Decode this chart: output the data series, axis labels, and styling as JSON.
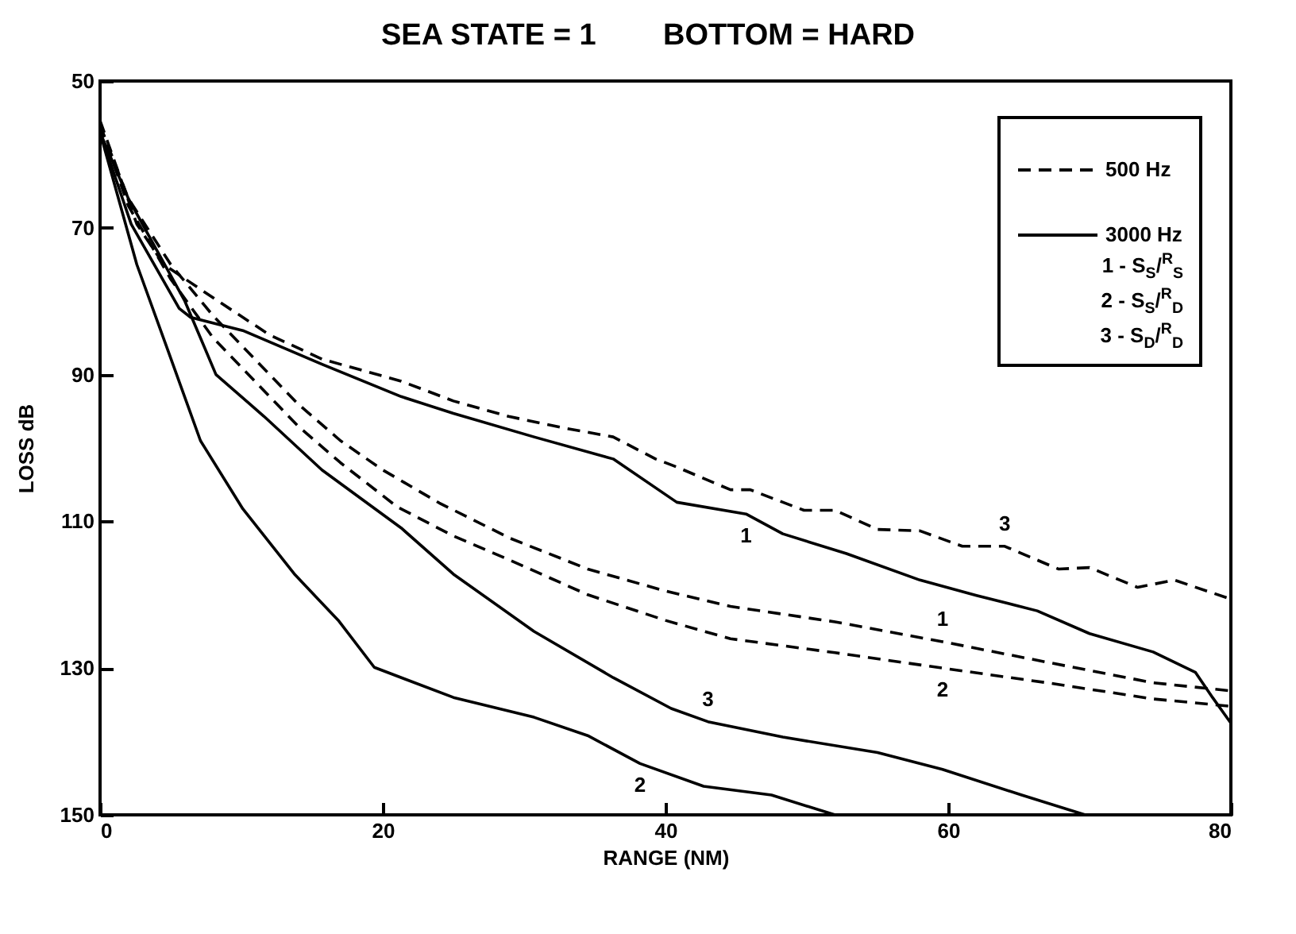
{
  "chart_data": {
    "type": "line",
    "title": "SEA STATE = 1        BOTTOM = HARD",
    "xlabel": "RANGE (NM)",
    "ylabel": "LOSS dB",
    "xlim": [
      0,
      80
    ],
    "xticks": [
      0,
      20,
      40,
      60,
      80
    ],
    "ylim": [
      150,
      50
    ],
    "yticks": [
      50,
      70,
      90,
      110,
      130,
      150
    ],
    "grid": false,
    "legend": "top right",
    "marker": "none",
    "series": [
      {
        "name": "500 Hz",
        "color": "#000000",
        "line_style": "dashed",
        "x": [
          0,
          2,
          5,
          8,
          11,
          14,
          17,
          20,
          24,
          29,
          34.5,
          40,
          44.6,
          52,
          59.6,
          67,
          74.5,
          80
        ],
        "values": [
          56,
          66,
          75,
          82,
          88,
          94,
          99,
          103,
          107.5,
          112.3,
          116.5,
          119.5,
          121.6,
          123.7,
          126.4,
          129.2,
          132,
          133.1
        ]
      },
      {
        "color": "#000000",
        "line_style": "dashed",
        "x": [
          0,
          2,
          5,
          8,
          11,
          14,
          17,
          21,
          25,
          29,
          34.5,
          40,
          44.6,
          52,
          59.6,
          67,
          74.5,
          80
        ],
        "values": [
          56,
          67,
          77,
          85,
          91,
          97,
          102,
          108,
          112,
          115.3,
          120,
          123.5,
          126,
          127.9,
          130,
          132,
          134.2,
          135.2
        ]
      },
      {
        "color": "#000000",
        "line_style": "dashed",
        "x": [
          0,
          2.6,
          4.5,
          8.2,
          12,
          15.7,
          21.3,
          25,
          28.9,
          32.6,
          36.3,
          39.3,
          40.8,
          44.6,
          46,
          49.8,
          52,
          55,
          58,
          61,
          64,
          67.8,
          70,
          73.4,
          76,
          80
        ],
        "values": [
          55.4,
          69.5,
          75,
          79.8,
          84.6,
          87.9,
          90.9,
          93.6,
          95.7,
          97.2,
          98.5,
          101.5,
          102.6,
          105.7,
          105.7,
          108.5,
          108.5,
          111.1,
          111.3,
          113.4,
          113.4,
          116.5,
          116.3,
          119,
          118,
          120.6
        ]
      },
      {
        "name": "3000 Hz",
        "color": "#000000",
        "line_style": "solid",
        "x": [
          0,
          2.2,
          5.6,
          6.4,
          10.1,
          15.7,
          21.3,
          25,
          30.7,
          36.3,
          40.8,
          45.7,
          48.3,
          52.8,
          58,
          62,
          66.3,
          70,
          74.5,
          77.5,
          78.7,
          80
        ],
        "values": [
          57,
          69.5,
          81,
          82.2,
          84,
          88.6,
          93,
          95.3,
          98.5,
          101.5,
          107.4,
          109,
          111.7,
          114.4,
          118,
          120.1,
          122.2,
          125.3,
          127.8,
          130.6,
          134,
          137.5
        ]
      },
      {
        "color": "#000000",
        "line_style": "solid",
        "x": [
          0,
          2.6,
          4.8,
          7.1,
          10.1,
          13.8,
          16.9,
          19.4,
          25,
          30.7,
          34.5,
          38.2,
          42.7,
          47.5,
          52
        ],
        "values": [
          57,
          75,
          86.7,
          99,
          108.3,
          117.3,
          123.6,
          129.9,
          134,
          136.7,
          139.2,
          143,
          146.1,
          147.3,
          150
        ]
      },
      {
        "color": "#000000",
        "line_style": "solid",
        "x": [
          0,
          2,
          4,
          6,
          8.2,
          11.6,
          15.7,
          21.3,
          25,
          30.7,
          36.3,
          40.4,
          43,
          48.3,
          55,
          59.6,
          65.2,
          69.7
        ],
        "values": [
          57,
          66,
          73,
          80,
          90,
          95.7,
          103,
          110.9,
          117.2,
          125,
          131.3,
          135.5,
          137.3,
          139.4,
          141.5,
          143.8,
          147.3,
          150
        ]
      }
    ],
    "annotations": [
      "1 - S$_{S}$/$^{R}$$_{S}$",
      "2 - S$_{S}$/$^{R}$$_{D}$",
      "3 - S$_{D}$/$^{R}$$_{D}$",
      {
        "text": "1",
        "x": 45.7,
        "y": 109
      },
      {
        "text": "3",
        "x": 64,
        "y": 113.4
      },
      {
        "text": "1",
        "x": 59.6,
        "y": 126.4
      },
      {
        "text": "2",
        "x": 59.6,
        "y": 130
      },
      {
        "text": "3",
        "x": 43,
        "y": 137.3
      },
      {
        "text": "2",
        "x": 38.2,
        "y": 143
      }
    ]
  }
}
